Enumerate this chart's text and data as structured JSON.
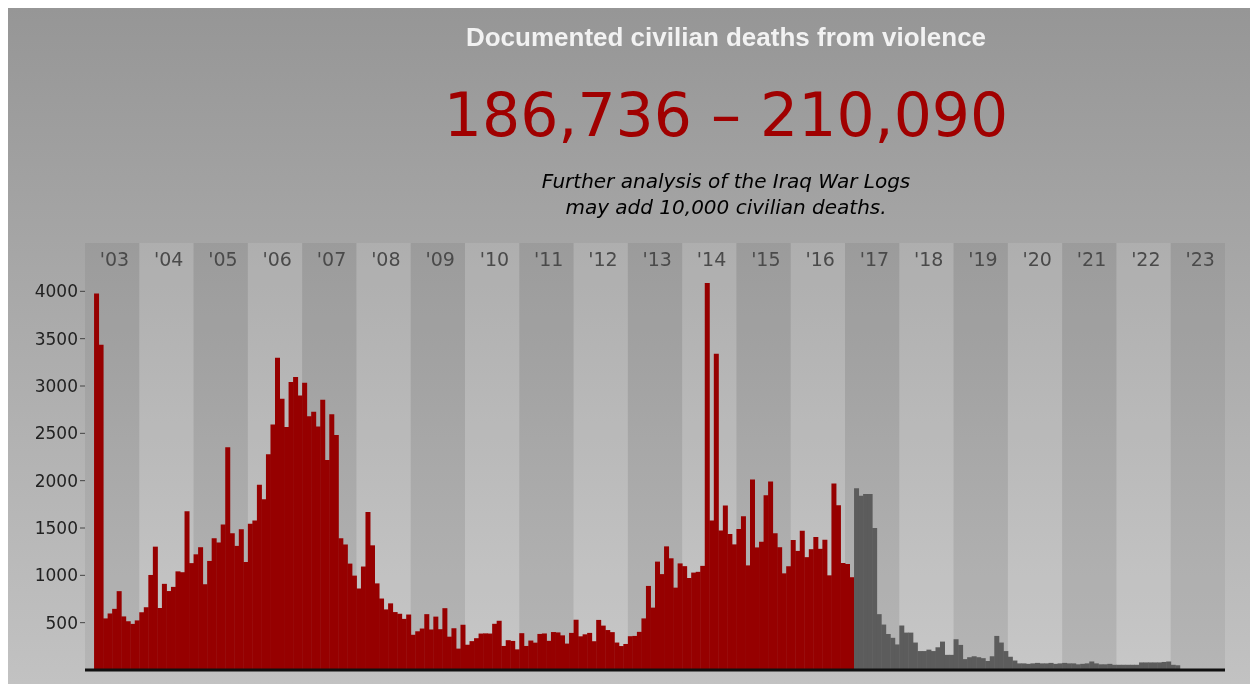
{
  "chart_data": {
    "type": "bar",
    "title": "Documented civilian deaths from violence",
    "subtitle": "186,736 – 210,090",
    "annotations": [
      "Further analysis of the Iraq War Logs may add 10,000 civilian deaths."
    ],
    "categories": [
      null,
      null,
      null,
      null,
      null,
      null,
      "'03",
      null,
      null,
      null,
      null,
      null,
      null,
      null,
      null,
      null,
      null,
      null,
      "'04",
      null,
      null,
      null,
      null,
      null,
      null,
      null,
      null,
      null,
      null,
      null,
      "'05",
      null,
      null,
      null,
      null,
      null,
      null,
      null,
      null,
      null,
      null,
      null,
      "'06",
      null,
      null,
      null,
      null,
      null,
      null,
      null,
      null,
      null,
      null,
      null,
      "'07",
      null,
      null,
      null,
      null,
      null,
      null,
      null,
      null,
      null,
      null,
      null,
      "'08",
      null,
      null,
      null,
      null,
      null,
      null,
      null,
      null,
      null,
      null,
      null,
      "'09",
      null,
      null,
      null,
      null,
      null,
      null,
      null,
      null,
      null,
      null,
      null,
      "'10",
      null,
      null,
      null,
      null,
      null,
      null,
      null,
      null,
      null,
      null,
      null,
      "'11",
      null,
      null,
      null,
      null,
      null,
      null,
      null,
      null,
      null,
      null,
      null,
      "'12",
      null,
      null,
      null,
      null,
      null,
      null,
      null,
      null,
      null,
      null,
      null,
      "'13",
      null,
      null,
      null,
      null,
      null,
      null,
      null,
      null,
      null,
      null,
      null,
      "'14",
      null,
      null,
      null,
      null,
      null,
      null,
      null,
      null,
      null,
      null,
      null,
      "'15",
      null,
      null,
      null,
      null,
      null,
      null,
      null,
      null,
      null,
      null,
      null,
      "'16",
      null,
      null,
      null,
      null,
      null,
      null,
      null,
      null,
      null,
      null,
      null,
      "'17",
      null,
      null,
      null,
      null,
      null,
      null,
      null,
      null,
      null,
      null,
      null,
      "'18",
      null,
      null,
      null,
      null,
      null,
      null,
      null,
      null,
      null,
      null,
      null,
      "'19",
      null,
      null,
      null,
      null,
      null,
      null,
      null,
      null,
      null,
      null,
      null,
      "'20",
      null,
      null,
      null,
      null,
      null,
      null,
      null,
      null,
      null,
      null,
      null,
      "'21",
      null,
      null,
      null,
      null,
      null,
      null,
      null,
      null,
      null,
      null,
      null,
      "'22",
      null,
      null,
      null,
      null,
      null,
      null,
      null,
      null,
      null,
      null,
      null,
      "'23",
      null,
      null,
      null,
      null,
      null
    ],
    "values": [
      3,
      2,
      3977,
      3437,
      545,
      597,
      646,
      833,
      566,
      515,
      487,
      524,
      610,
      663,
      1004,
      1303,
      655,
      910,
      834,
      878,
      1042,
      1033,
      1676,
      1129,
      1222,
      1297,
      906,
      1152,
      1392,
      1347,
      1536,
      2352,
      1444,
      1311,
      1487,
      1141,
      1546,
      1579,
      1957,
      1804,
      2279,
      2594,
      3298,
      2865,
      2567,
      3041,
      3095,
      2900,
      3035,
      2680,
      2728,
      2573,
      2854,
      2219,
      2702,
      2483,
      1391,
      1326,
      1124,
      997,
      861,
      1093,
      1669,
      1317,
      915,
      755,
      640,
      704,
      612,
      594,
      540,
      586,
      372,
      409,
      438,
      590,
      428,
      564,
      431,
      653,
      352,
      441,
      226,
      478,
      267,
      305,
      336,
      385,
      387,
      385,
      488,
      520,
      254,
      315,
      307,
      218,
      389,
      254,
      311,
      289,
      381,
      386,
      308,
      401,
      397,
      366,
      279,
      392,
      531,
      356,
      377,
      392,
      304,
      529,
      469,
      422,
      400,
      290,
      253,
      275,
      357,
      360,
      403,
      545,
      888,
      659,
      1145,
      1013,
      1306,
      1180,
      870,
      1126,
      1097,
      972,
      1029,
      1037,
      1100,
      4088,
      1580,
      3340,
      1474,
      1738,
      1436,
      1327,
      1490,
      1625,
      1105,
      2013,
      1295,
      1355,
      1845,
      1991,
      1445,
      1297,
      1021,
      1096,
      1374,
      1258,
      1470,
      1192,
      1276,
      1405,
      1280,
      1375,
      1000,
      1970,
      1740,
      1130,
      1120,
      980,
      1920,
      1840,
      1860,
      1860,
      1500,
      590,
      480,
      380,
      340,
      270,
      470,
      395,
      395,
      290,
      200,
      200,
      215,
      200,
      240,
      300,
      160,
      160,
      325,
      265,
      115,
      135,
      145,
      135,
      125,
      95,
      145,
      360,
      290,
      200,
      140,
      100,
      70,
      70,
      65,
      70,
      75,
      70,
      70,
      75,
      65,
      70,
      75,
      70,
      70,
      60,
      65,
      70,
      90,
      70,
      60,
      60,
      65,
      55,
      55,
      55,
      55,
      55,
      55,
      80,
      80,
      80,
      80,
      80,
      85,
      90,
      55,
      50,
      null,
      null,
      null,
      null,
      null,
      null,
      null,
      null,
      null,
      null
    ],
    "colors": [
      "#960000",
      "#960000",
      "#960000",
      "#960000",
      "#960000",
      "#960000",
      "#960000",
      "#960000",
      "#960000",
      "#960000",
      "#960000",
      "#960000",
      "#960000",
      "#960000",
      "#960000",
      "#960000",
      "#960000",
      "#960000",
      "#960000",
      "#960000",
      "#960000",
      "#960000",
      "#960000",
      "#960000",
      "#960000",
      "#960000",
      "#960000",
      "#960000",
      "#960000",
      "#960000",
      "#960000",
      "#960000",
      "#960000",
      "#960000",
      "#960000",
      "#960000",
      "#960000",
      "#960000",
      "#960000",
      "#960000",
      "#960000",
      "#960000",
      "#960000",
      "#960000",
      "#960000",
      "#960000",
      "#960000",
      "#960000",
      "#960000",
      "#960000",
      "#960000",
      "#960000",
      "#960000",
      "#960000",
      "#960000",
      "#960000",
      "#960000",
      "#960000",
      "#960000",
      "#960000",
      "#960000",
      "#960000",
      "#960000",
      "#960000",
      "#960000",
      "#960000",
      "#960000",
      "#960000",
      "#960000",
      "#960000",
      "#960000",
      "#960000",
      "#960000",
      "#960000",
      "#960000",
      "#960000",
      "#960000",
      "#960000",
      "#960000",
      "#960000",
      "#960000",
      "#960000",
      "#960000",
      "#960000",
      "#960000",
      "#960000",
      "#960000",
      "#960000",
      "#960000",
      "#960000",
      "#960000",
      "#960000",
      "#960000",
      "#960000",
      "#960000",
      "#960000",
      "#960000",
      "#960000",
      "#960000",
      "#960000",
      "#960000",
      "#960000",
      "#960000",
      "#960000",
      "#960000",
      "#960000",
      "#960000",
      "#960000",
      "#960000",
      "#960000",
      "#960000",
      "#960000",
      "#960000",
      "#960000",
      "#960000",
      "#960000",
      "#960000",
      "#960000",
      "#960000",
      "#960000",
      "#960000",
      "#960000",
      "#960000",
      "#960000",
      "#960000",
      "#960000",
      "#960000",
      "#960000",
      "#960000",
      "#960000",
      "#960000",
      "#960000",
      "#960000",
      "#960000",
      "#960000",
      "#960000",
      "#960000",
      "#960000",
      "#960000",
      "#960000",
      "#960000",
      "#960000",
      "#960000",
      "#960000",
      "#960000",
      "#960000",
      "#960000",
      "#960000",
      "#960000",
      "#960000",
      "#960000",
      "#960000",
      "#960000",
      "#960000",
      "#960000",
      "#960000",
      "#960000",
      "#960000",
      "#960000",
      "#960000",
      "#960000",
      "#960000",
      "#960000",
      "#960000",
      "#960000",
      "#960000",
      "#960000",
      "#960000",
      "#960000",
      "#960000",
      "#5c5c5c",
      "#5c5c5c",
      "#5c5c5c",
      "#5c5c5c",
      "#5c5c5c",
      "#5c5c5c",
      "#5c5c5c",
      "#5c5c5c",
      "#5c5c5c",
      "#5c5c5c",
      "#5c5c5c",
      "#5c5c5c",
      "#5c5c5c",
      "#5c5c5c",
      "#5c5c5c",
      "#5c5c5c",
      "#5c5c5c",
      "#5c5c5c",
      "#5c5c5c",
      "#5c5c5c",
      "#5c5c5c",
      "#5c5c5c",
      "#5c5c5c",
      "#5c5c5c",
      "#5c5c5c",
      "#5c5c5c",
      "#5c5c5c",
      "#5c5c5c",
      "#5c5c5c",
      "#5c5c5c",
      "#5c5c5c",
      "#5c5c5c",
      "#5c5c5c",
      "#5c5c5c",
      "#5c5c5c",
      "#5c5c5c",
      "#5c5c5c",
      "#5c5c5c",
      "#5c5c5c",
      "#5c5c5c",
      "#5c5c5c",
      "#5c5c5c",
      "#5c5c5c",
      "#5c5c5c",
      "#5c5c5c",
      "#5c5c5c",
      "#5c5c5c",
      "#5c5c5c",
      "#5c5c5c",
      "#5c5c5c",
      "#5c5c5c",
      "#5c5c5c",
      "#5c5c5c",
      "#5c5c5c",
      "#5c5c5c",
      "#5c5c5c",
      "#5c5c5c",
      "#5c5c5c",
      "#5c5c5c",
      "#5c5c5c",
      "#5c5c5c",
      "#5c5c5c",
      "#5c5c5c",
      "#5c5c5c",
      "#5c5c5c",
      "#5c5c5c",
      "#5c5c5c",
      "#5c5c5c",
      "#5c5c5c",
      "#5c5c5c",
      "#5c5c5c",
      "#5c5c5c",
      "#5c5c5c",
      "#5c5c5c",
      "#5c5c5c",
      "#5c5c5c",
      "#5c5c5c",
      "#5c5c5c",
      "#5c5c5c",
      "#5c5c5c",
      "#5c5c5c",
      "#5c5c5c"
    ],
    "ylim": [
      0,
      4500
    ],
    "yticks": [
      500,
      1000,
      1500,
      2000,
      2500,
      3000,
      3500,
      4000
    ]
  }
}
